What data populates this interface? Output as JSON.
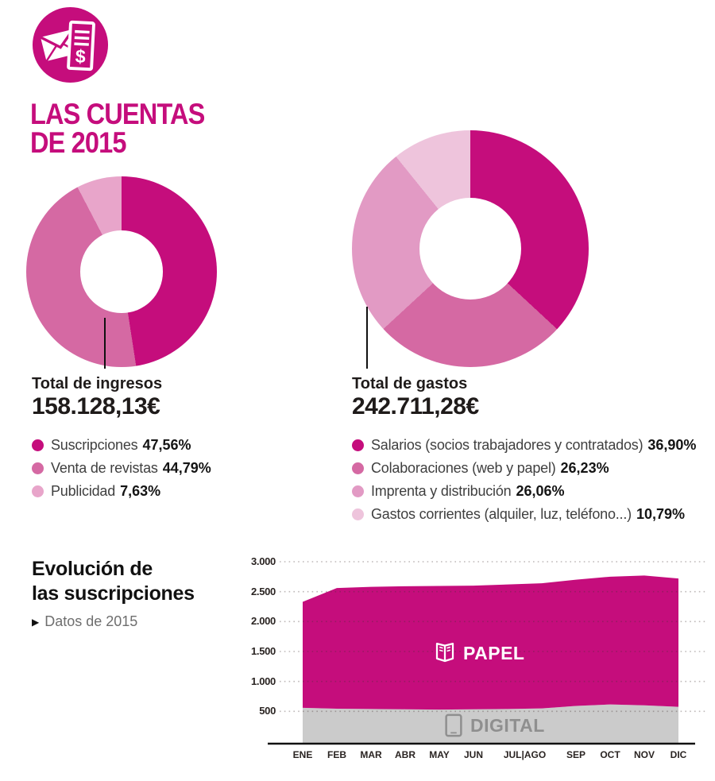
{
  "palette": {
    "magenta": "#c50d7c",
    "pink_medium": "#d569a3",
    "pink_light": "#e29ac4",
    "pink_lightest": "#eec4dc",
    "gray_area": "#cbcbcb",
    "gray_label": "#8f8f8f"
  },
  "header": {
    "icon": "envelope-invoice-icon",
    "title_line1": "LAS CUENTAS",
    "title_line2": "DE 2015"
  },
  "evolution": {
    "title_line1": "Evolución de",
    "title_line2": "las suscripciones",
    "bullet": "▶",
    "subtitle": "Datos de 2015"
  },
  "chart_data": [
    {
      "type": "donut",
      "name": "ingresos",
      "label": "Total de ingresos",
      "total": "158.128,13€",
      "segments": [
        {
          "label": "Suscripciones",
          "pct_text": "47,56%",
          "value": 47.56,
          "color": "#c50d7c"
        },
        {
          "label": "Venta de revistas",
          "pct_text": "44,79%",
          "value": 44.79,
          "color": "#d569a3"
        },
        {
          "label": "Publicidad",
          "pct_text": "7,63%",
          "value": 7.63,
          "color": "#e8a5ca"
        }
      ]
    },
    {
      "type": "donut",
      "name": "gastos",
      "label": "Total de gastos",
      "total": "242.711,28€",
      "segments": [
        {
          "label": "Salarios (socios trabajadores y contratados)",
          "pct_text": "36,90%",
          "value": 36.9,
          "color": "#c50d7c"
        },
        {
          "label": "Colaboraciones (web y papel)",
          "pct_text": "26,23%",
          "value": 26.23,
          "color": "#d569a3"
        },
        {
          "label": "Imprenta y distribución",
          "pct_text": "26,06%",
          "value": 26.06,
          "color": "#e29ac4"
        },
        {
          "label": "Gastos corrientes (alquiler, luz, teléfono...)",
          "pct_text": "10,79%",
          "value": 10.79,
          "color": "#eec4dc"
        }
      ]
    },
    {
      "type": "area",
      "stacked": true,
      "title": "Evolución de las suscripciones",
      "months": [
        "ENE",
        "FEB",
        "MAR",
        "ABR",
        "MAY",
        "JUN",
        "JUL",
        "AGO",
        "SEP",
        "OCT",
        "NOV",
        "DIC"
      ],
      "x_labels": [
        "ENE",
        "FEB",
        "MAR",
        "ABR",
        "MAY",
        "JUN",
        "JUL|AGO",
        "SEP",
        "OCT",
        "NOV",
        "DIC"
      ],
      "series": [
        {
          "name": "DIGITAL",
          "color": "#cbcbcb",
          "values": [
            560,
            545,
            540,
            535,
            530,
            535,
            540,
            550,
            590,
            615,
            600,
            575
          ]
        },
        {
          "name": "PAPEL",
          "color": "#c50d7c",
          "values": [
            1770,
            2015,
            2040,
            2055,
            2065,
            2065,
            2080,
            2090,
            2110,
            2135,
            2170,
            2145
          ]
        }
      ],
      "yticks": [
        {
          "label": "500",
          "value": 500
        },
        {
          "label": "1.000",
          "value": 1000
        },
        {
          "label": "1.500",
          "value": 1500
        },
        {
          "label": "2.000",
          "value": 2000
        },
        {
          "label": "2.500",
          "value": 2500
        },
        {
          "label": "3.000",
          "value": 3000
        }
      ],
      "ylim": [
        0,
        3000
      ],
      "grid": "dotted",
      "legend_position": "inside"
    }
  ]
}
